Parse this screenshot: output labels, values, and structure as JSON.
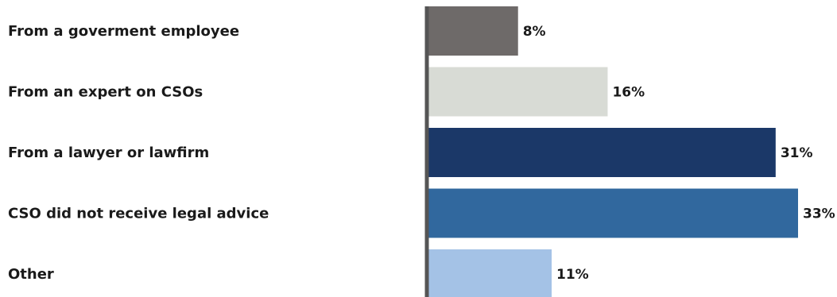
{
  "chart_data": {
    "type": "bar",
    "orientation": "horizontal",
    "categories": [
      "From a goverment employee",
      "From an expert on CSOs",
      "From a lawyer or lawfirm",
      "CSO did not receive legal advice",
      "Other"
    ],
    "values": [
      8,
      16,
      31,
      33,
      11
    ],
    "value_labels": [
      "8%",
      "16%",
      "31%",
      "33%",
      "11%"
    ],
    "colors": [
      "#6e6a69",
      "#d8dbd5",
      "#1b3868",
      "#31689e",
      "#a4c2e6"
    ],
    "axis_color": "#555555",
    "grid": false,
    "legend": "none",
    "xlim": [
      0,
      33
    ]
  }
}
